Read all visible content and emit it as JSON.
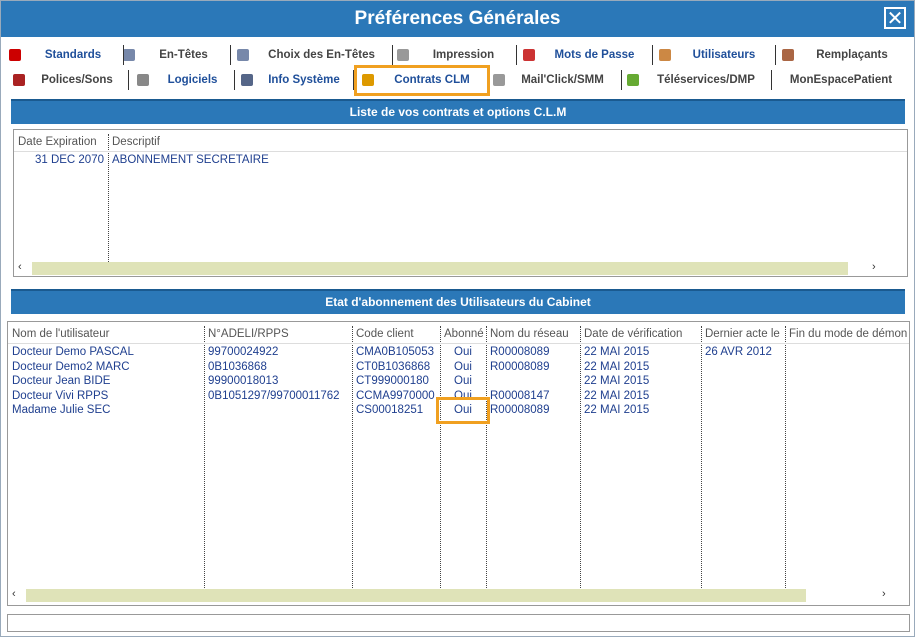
{
  "window": {
    "title": "Préférences Générales"
  },
  "tabs": {
    "row1": [
      "Standards",
      "En-Têtes",
      "Choix des En-Têtes",
      "Impression",
      "Mots de Passe",
      "Utilisateurs",
      "Remplaçants"
    ],
    "row2": [
      "Polices/Sons",
      "Logiciels",
      "Info Système",
      "Contrats CLM",
      "Mail'Click/SMM",
      "Téléservices/DMP",
      "MonEspacePatient"
    ]
  },
  "contracts": {
    "title": "Liste de vos contrats et options C.L.M",
    "headers": [
      "Date Expiration",
      "Descriptif"
    ],
    "rows": [
      [
        "31 DEC 2070",
        "ABONNEMENT SECRETAIRE"
      ]
    ]
  },
  "users": {
    "title": "Etat d'abonnement des Utilisateurs du Cabinet",
    "headers": [
      "Nom de l'utilisateur",
      "N°ADELI/RPPS",
      "Code client",
      "Abonné",
      "Nom du réseau",
      "Date de vérification",
      "Dernier acte le",
      "Fin du mode de démons"
    ],
    "rows": [
      [
        "Docteur Demo PASCAL",
        "99700024922",
        "CMA0B105053",
        "Oui",
        "R00008089",
        "22 MAI 2015",
        "26 AVR 2012",
        null
      ],
      [
        "Docteur Demo2 MARC",
        "0B1036868",
        "CT0B1036868",
        "Oui",
        "R00008089",
        "22 MAI 2015",
        null,
        null
      ],
      [
        "Docteur Jean BIDE",
        "99900018013",
        "CT999000180",
        "Oui",
        null,
        "22 MAI 2015",
        null,
        null
      ],
      [
        "Docteur Vivi RPPS",
        "0B1051297/99700011762",
        "CCMA9970000",
        "Oui",
        "R00008147",
        "22 MAI 2015",
        null,
        null
      ],
      [
        "Madame Julie SEC",
        null,
        "CS00018251",
        "Oui",
        "R00008089",
        "22 MAI 2015",
        null,
        null
      ]
    ]
  }
}
